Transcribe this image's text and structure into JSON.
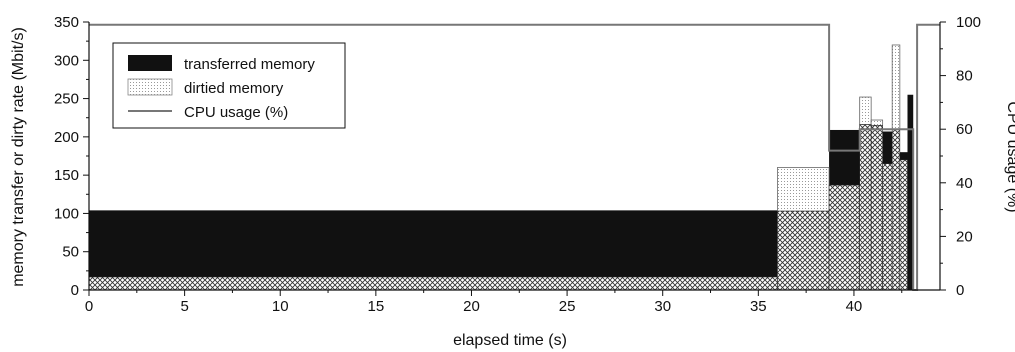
{
  "chart_data": {
    "type": "bar",
    "xlabel": "elapsed time (s)",
    "ylabel": "memory transfer or dirty rate (Mbit/s)",
    "y2label": "CPU usage (%)",
    "xlim": [
      0,
      44.5
    ],
    "ylim": [
      0,
      350
    ],
    "y2lim": [
      0,
      100
    ],
    "x_ticks": [
      0,
      5,
      10,
      15,
      20,
      25,
      30,
      35,
      40
    ],
    "y_ticks": [
      0,
      50,
      100,
      150,
      200,
      250,
      300,
      350
    ],
    "y2_ticks": [
      0,
      20,
      40,
      60,
      80,
      100
    ],
    "grid": false,
    "legend_position": "top-left",
    "legend": [
      "transferred memory",
      "dirtied memory",
      "CPU usage (%)"
    ],
    "series": [
      {
        "name": "transferred memory",
        "color": "#111111",
        "bins": [
          {
            "x0": 0.0,
            "x1": 36.0,
            "value": 104
          },
          {
            "x0": 36.0,
            "x1": 38.7,
            "value": 103
          },
          {
            "x0": 38.7,
            "x1": 40.3,
            "value": 209
          },
          {
            "x0": 40.3,
            "x1": 40.9,
            "value": 216
          },
          {
            "x0": 40.9,
            "x1": 41.5,
            "value": 215
          },
          {
            "x0": 41.5,
            "x1": 42.0,
            "value": 207
          },
          {
            "x0": 42.0,
            "x1": 42.4,
            "value": 210
          },
          {
            "x0": 42.4,
            "x1": 42.8,
            "value": 180
          },
          {
            "x0": 42.8,
            "x1": 43.1,
            "value": 255
          }
        ]
      },
      {
        "name": "dirtied memory",
        "color": "#cccccc",
        "bins": [
          {
            "x0": 0.0,
            "x1": 36.0,
            "value": 17
          },
          {
            "x0": 36.0,
            "x1": 38.7,
            "value": 160
          },
          {
            "x0": 38.7,
            "x1": 40.3,
            "value": 137
          },
          {
            "x0": 40.3,
            "x1": 40.9,
            "value": 252
          },
          {
            "x0": 40.9,
            "x1": 41.5,
            "value": 222
          },
          {
            "x0": 41.5,
            "x1": 42.0,
            "value": 165
          },
          {
            "x0": 42.0,
            "x1": 42.4,
            "value": 320
          },
          {
            "x0": 42.4,
            "x1": 42.8,
            "value": 170
          },
          {
            "x0": 42.8,
            "x1": 43.1,
            "value": 0
          }
        ]
      },
      {
        "name": "CPU usage (%)",
        "color": "#777777",
        "axis": "right",
        "x": [
          0,
          38.7,
          38.7,
          40.3,
          40.3,
          43.1,
          43.1,
          43.3,
          43.3,
          44.5
        ],
        "y": [
          99,
          99,
          52,
          52,
          60,
          60,
          0,
          0,
          99,
          99
        ]
      }
    ]
  }
}
